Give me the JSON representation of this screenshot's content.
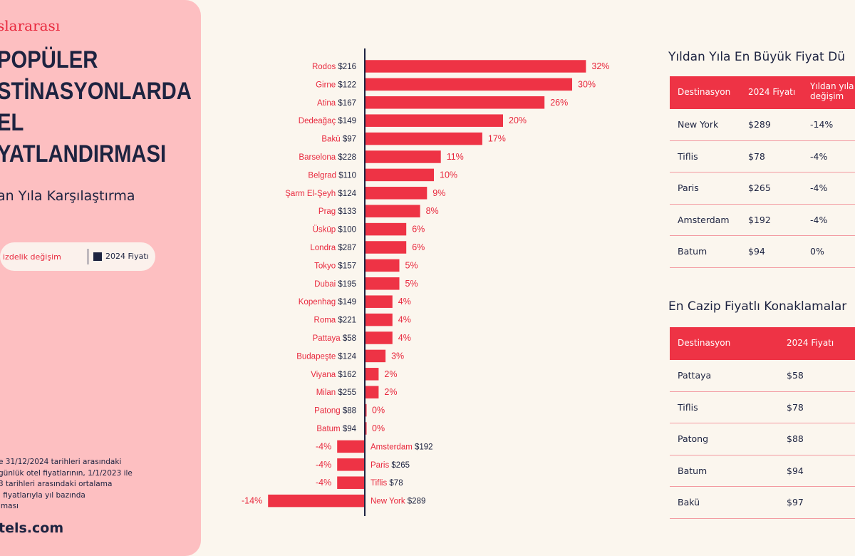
{
  "left_panel": {
    "kicker": "slararası",
    "title_lines": [
      "POPÜLER",
      "STİNASYONLARDA",
      "EL",
      "YATLANDIRMASI"
    ],
    "subtitle": "an Yıla Karşılaştırma",
    "legend_red": "izdelik değişim",
    "legend_navy": "2024 Fiyatı",
    "note_lines": [
      "e 31/12/2024 tarihleri arasındaki",
      "günlük otel fiyatlarının, 1/1/2023 ile",
      "3 tarihleri arasındaki ortalama",
      "l fiyatlarıyla yıl bazında",
      "lması"
    ],
    "logo": "tels.com"
  },
  "colors": {
    "accent": "#ee3345",
    "navy": "#1d2340",
    "panel": "#fdbfc1",
    "background": "#fbf6ee"
  },
  "chart_data": {
    "type": "bar",
    "orientation": "horizontal",
    "categories": [
      "Rodos",
      "Girne",
      "Atina",
      "Dedeağaç",
      "Bakü",
      "Barselona",
      "Belgrad",
      "Şarm El-Şeyh",
      "Prag",
      "Üsküp",
      "Londra",
      "Tokyo",
      "Dubai",
      "Kopenhag",
      "Roma",
      "Pattaya",
      "Budapeşte",
      "Viyana",
      "Milan",
      "Patong",
      "Batum",
      "Amsterdam",
      "Paris",
      "Tiflis",
      "New York"
    ],
    "prices": [
      "$216",
      "$122",
      "$167",
      "$149",
      "$97",
      "$228",
      "$110",
      "$124",
      "$133",
      "$100",
      "$287",
      "$157",
      "$195",
      "$149",
      "$221",
      "$58",
      "$124",
      "$162",
      "$255",
      "$88",
      "$94",
      "$192",
      "$265",
      "$78",
      "$289"
    ],
    "values": [
      32,
      30,
      26,
      20,
      17,
      11,
      10,
      9,
      8,
      6,
      6,
      5,
      5,
      4,
      4,
      4,
      3,
      2,
      2,
      0,
      0,
      -4,
      -4,
      -4,
      -14
    ],
    "labels": [
      "32%",
      "30%",
      "26%",
      "20%",
      "17%",
      "11%",
      "10%",
      "9%",
      "8%",
      "6%",
      "6%",
      "5%",
      "5%",
      "4%",
      "4%",
      "4%",
      "3%",
      "2%",
      "2%",
      "0%",
      "0%",
      "-4%",
      "-4%",
      "-4%",
      "-14%"
    ],
    "bar_color": "#ee3345",
    "axis_color": "#1d2340"
  },
  "table1": {
    "title": "Yıldan Yıla En Büyük Fiyat Dü",
    "headers": [
      "Destinasyon",
      "2024 Fiyatı",
      "Yıldan yıla\ndeğişim"
    ],
    "header_line1": "Yıldan yıla",
    "header_line2": "değişim",
    "rows": [
      [
        "New York",
        "$289",
        "-14%"
      ],
      [
        "Tiflis",
        "$78",
        "-4%"
      ],
      [
        "Paris",
        "$265",
        "-4%"
      ],
      [
        "Amsterdam",
        "$192",
        "-4%"
      ],
      [
        "Batum",
        "$94",
        "0%"
      ]
    ]
  },
  "table2": {
    "title": "En Cazip Fiyatlı Konaklamalar",
    "headers": [
      "Destinasyon",
      "2024 Fiyatı"
    ],
    "rows": [
      [
        "Pattaya",
        "$58"
      ],
      [
        "Tiflis",
        "$78"
      ],
      [
        "Patong",
        "$88"
      ],
      [
        "Batum",
        "$94"
      ],
      [
        "Bakü",
        "$97"
      ]
    ]
  }
}
